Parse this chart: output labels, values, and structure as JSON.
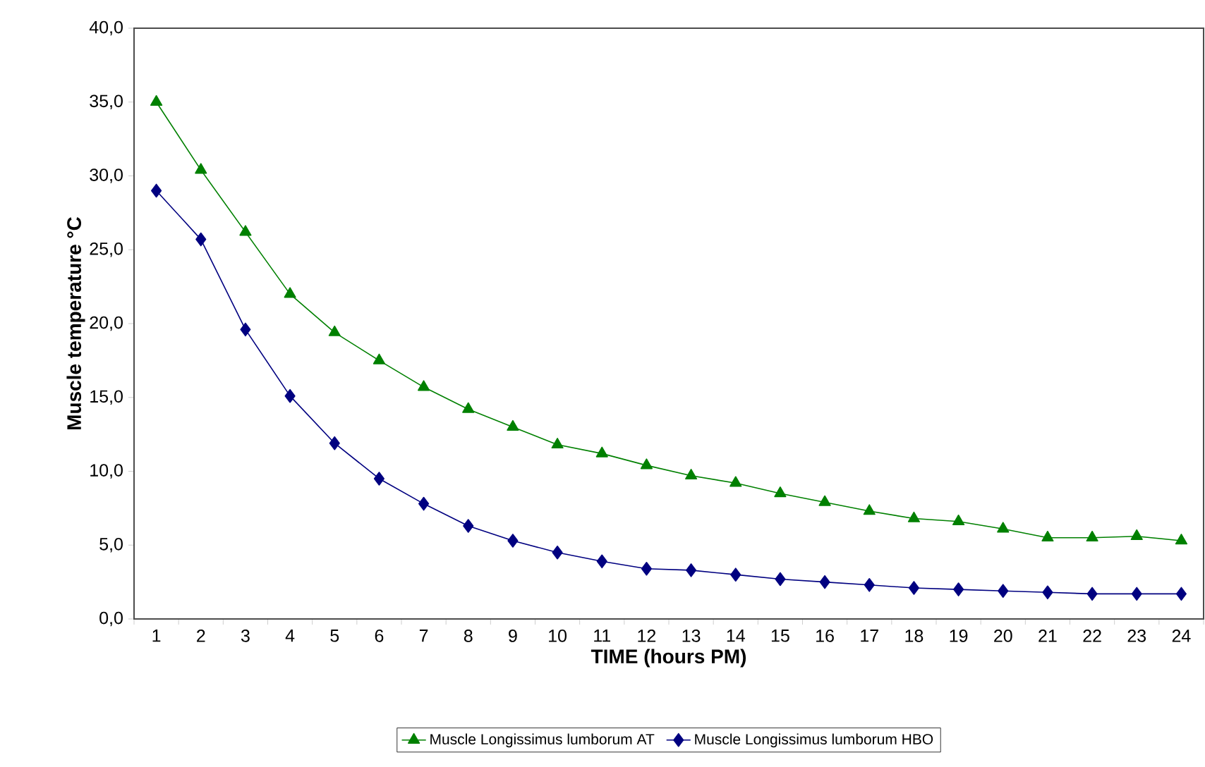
{
  "chart_data": {
    "type": "line",
    "xlabel": "TIME (hours PM)",
    "ylabel": "Muscle temperature °C",
    "categories": [
      "1",
      "2",
      "3",
      "4",
      "5",
      "6",
      "7",
      "8",
      "9",
      "10",
      "11",
      "12",
      "13",
      "14",
      "15",
      "16",
      "17",
      "18",
      "19",
      "20",
      "21",
      "22",
      "23",
      "24"
    ],
    "series": [
      {
        "name": "Muscle Longissimus lumborum AT",
        "color": "#008000",
        "marker": "triangle",
        "values": [
          35.0,
          30.4,
          26.2,
          22.0,
          19.4,
          17.5,
          15.7,
          14.2,
          13.0,
          11.8,
          11.2,
          10.4,
          9.7,
          9.2,
          8.5,
          7.9,
          7.3,
          6.8,
          6.6,
          6.1,
          5.5,
          5.5,
          5.6,
          5.3
        ]
      },
      {
        "name": "Muscle Longissimus lumborum HBO",
        "color": "#000080",
        "marker": "diamond",
        "values": [
          29.0,
          25.7,
          19.6,
          15.1,
          11.9,
          9.5,
          7.8,
          6.3,
          5.3,
          4.5,
          3.9,
          3.4,
          3.3,
          3.0,
          2.7,
          2.5,
          2.3,
          2.1,
          2.0,
          1.9,
          1.8,
          1.7,
          1.7,
          1.7
        ]
      }
    ],
    "ylim": [
      0,
      40
    ],
    "yticks": [
      {
        "value": 0,
        "label": "0,0"
      },
      {
        "value": 5,
        "label": "5,0"
      },
      {
        "value": 10,
        "label": "10,0"
      },
      {
        "value": 15,
        "label": "15,0"
      },
      {
        "value": 20,
        "label": "20,0"
      },
      {
        "value": 25,
        "label": "25,0"
      },
      {
        "value": 30,
        "label": "30,0"
      },
      {
        "value": 35,
        "label": "35,0"
      },
      {
        "value": 40,
        "label": "40,0"
      }
    ],
    "grid": false,
    "legend": "bottom"
  }
}
